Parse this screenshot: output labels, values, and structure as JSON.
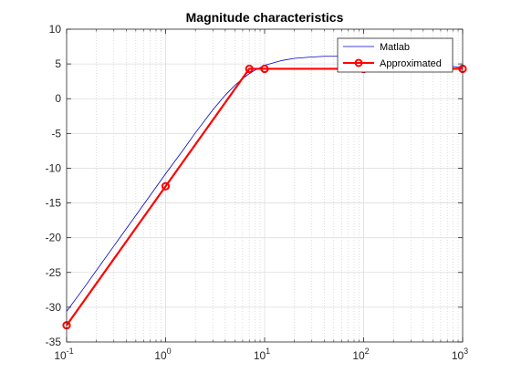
{
  "chart_data": {
    "type": "line",
    "title": "Magnitude characteristics",
    "xlabel": "",
    "ylabel": "",
    "xscale": "log",
    "xlim": [
      0.1,
      1000
    ],
    "ylim": [
      -35,
      10
    ],
    "grid": true,
    "minor_grid": true,
    "legend_placement": "top-right",
    "x_ticks": [
      {
        "value": 0.1,
        "base": "10",
        "exp": "-1"
      },
      {
        "value": 1,
        "base": "10",
        "exp": "0"
      },
      {
        "value": 10,
        "base": "10",
        "exp": "1"
      },
      {
        "value": 100,
        "base": "10",
        "exp": "2"
      },
      {
        "value": 1000,
        "base": "10",
        "exp": "3"
      }
    ],
    "y_ticks": [
      10,
      5,
      0,
      -5,
      -10,
      -15,
      -20,
      -25,
      -30,
      -35
    ],
    "series": [
      {
        "name": "Matlab",
        "color": "#0000cc",
        "style": "line",
        "x": [
          0.1,
          0.15,
          0.2,
          0.3,
          0.5,
          0.7,
          1,
          1.5,
          2,
          3,
          4,
          5,
          6,
          7,
          8,
          10,
          15,
          20,
          30,
          40,
          50,
          70,
          100,
          150,
          200,
          300,
          500,
          700,
          1000
        ],
        "y": [
          -30.6,
          -27.2,
          -24.7,
          -21.2,
          -16.8,
          -13.9,
          -10.8,
          -7.4,
          -4.9,
          -1.6,
          0.5,
          1.9,
          2.9,
          3.6,
          4.1,
          4.8,
          5.5,
          5.8,
          6.0,
          6.1,
          6.1,
          6.1,
          6.0,
          5.8,
          5.6,
          5.3,
          4.9,
          4.7,
          4.5
        ]
      },
      {
        "name": "Approximated",
        "color": "#ff0000",
        "style": "line+circle",
        "x": [
          0.1,
          1,
          7,
          10,
          100,
          1000
        ],
        "y": [
          -32.6,
          -12.6,
          4.3,
          4.3,
          4.3,
          4.3
        ]
      }
    ]
  }
}
